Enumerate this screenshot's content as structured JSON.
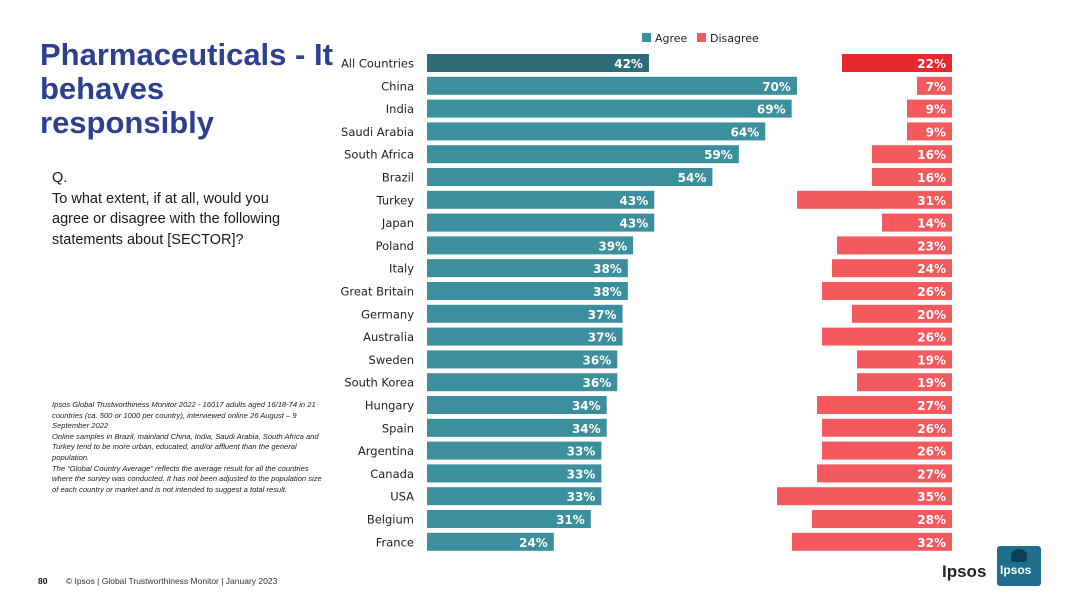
{
  "title": "Pharmaceuticals - It behaves responsibly",
  "question": {
    "prefix": "Q.",
    "text": "To what extent, if at all, would you agree or disagree with the following statements about [SECTOR]?"
  },
  "note": {
    "lines": [
      "Ipsos Global Trustworthiness Monitor 2022 - 16017 adults aged 16/18-74 in 21 countries (ca. 500 or 1000 per country), interviewed online 26 August – 9 September 2022",
      "Online samples in Brazil, mainland China, India, Saudi Arabia, South Africa and Turkey tend to be more urban, educated, and/or affluent than the general population.",
      "The “Global Country Average” reflects the average result for all the countries where the survey was conducted. It has not been adjusted to the population size of each country or market and is not intended to suggest a total result."
    ]
  },
  "footer": {
    "page_number": "80",
    "text": "© Ipsos | Global Trustworthiness Monitor | January 2023"
  },
  "logo": {
    "text": "Ipsos",
    "badge": "Ipsos"
  },
  "colors": {
    "agree": "#3c8f9c",
    "agree_highlight": "#2e6d77",
    "disagree": "#f4595e",
    "disagree_highlight": "#e8292e"
  },
  "chart_data": {
    "type": "bar",
    "orientation": "horizontal",
    "legend": [
      "Agree",
      "Disagree"
    ],
    "legend_position": "top",
    "categories": [
      "All Countries",
      "China",
      "India",
      "Saudi Arabia",
      "South Africa",
      "Brazil",
      "Turkey",
      "Japan",
      "Poland",
      "Italy",
      "Great Britain",
      "Germany",
      "Australia",
      "Sweden",
      "South Korea",
      "Hungary",
      "Spain",
      "Argentina",
      "Canada",
      "USA",
      "Belgium",
      "France"
    ],
    "series": [
      {
        "name": "Agree",
        "values": [
          42,
          70,
          69,
          64,
          59,
          54,
          43,
          43,
          39,
          38,
          38,
          37,
          37,
          36,
          36,
          34,
          34,
          33,
          33,
          33,
          31,
          24
        ]
      },
      {
        "name": "Disagree",
        "values": [
          22,
          7,
          9,
          9,
          16,
          16,
          31,
          14,
          23,
          24,
          26,
          20,
          26,
          19,
          19,
          27,
          26,
          26,
          27,
          35,
          28,
          32
        ]
      }
    ],
    "value_suffix": "%",
    "highlight_category": "All Countries",
    "xlim": [
      0,
      100
    ]
  }
}
